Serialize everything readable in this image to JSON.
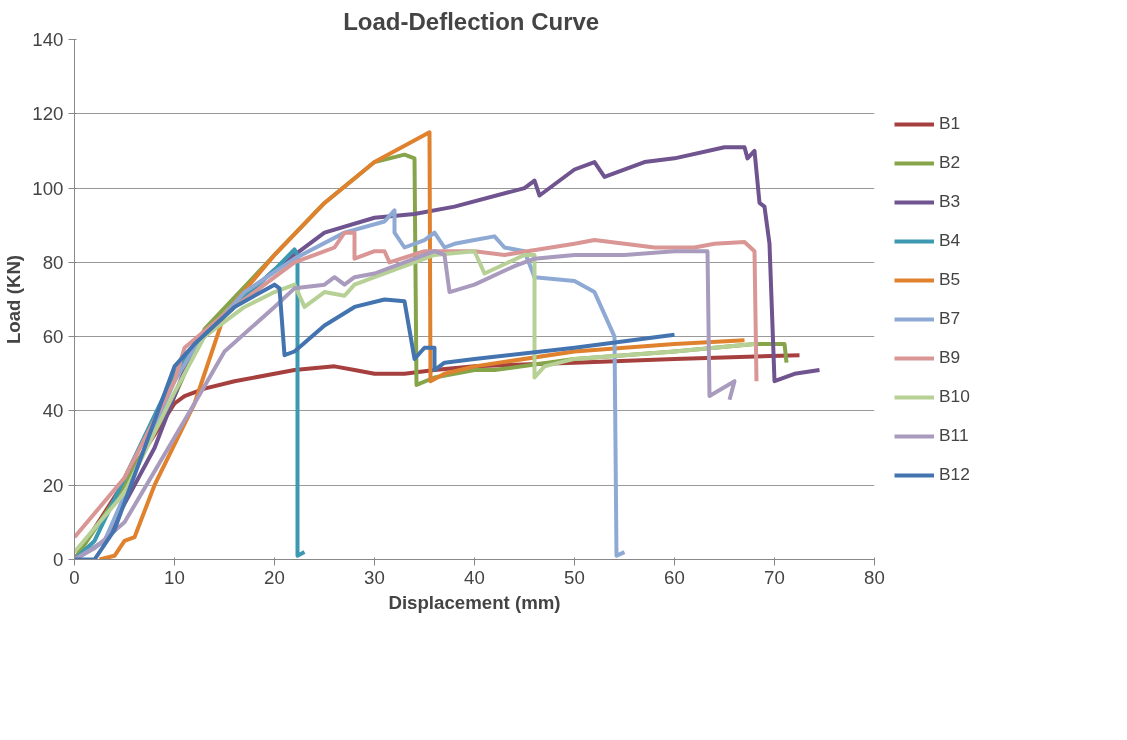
{
  "chart_data": {
    "type": "line",
    "title": "Load-Deflection  Curve",
    "xlabel": "Displacement (mm)",
    "ylabel": "Load (KN)",
    "xlim": [
      0,
      80
    ],
    "ylim": [
      0,
      140
    ],
    "xticks": [
      0,
      10,
      20,
      30,
      40,
      50,
      60,
      70,
      80
    ],
    "yticks": [
      0,
      20,
      40,
      60,
      80,
      100,
      120,
      140
    ],
    "grid": "y",
    "legend": "right",
    "line_style": "solid",
    "marker": "none",
    "series": [
      {
        "name": "B1",
        "color": "#a5403e",
        "x": [
          0,
          10,
          11,
          13,
          16,
          20,
          22,
          26,
          28,
          30,
          33,
          36,
          40,
          50,
          60,
          72.5
        ],
        "values": [
          0,
          42,
          44,
          46,
          48,
          50,
          51,
          52,
          51,
          50,
          50,
          51,
          52,
          53,
          54,
          55
        ]
      },
      {
        "name": "B2",
        "color": "#86a44a",
        "x": [
          0,
          5,
          10,
          13,
          20,
          25,
          30,
          33,
          34,
          34.2,
          36,
          40,
          42,
          50,
          60,
          68,
          71,
          71.2
        ],
        "values": [
          0,
          20,
          44,
          62,
          82,
          96,
          107,
          109,
          108,
          47,
          49,
          51,
          51,
          54,
          56,
          58,
          58,
          53
        ]
      },
      {
        "name": "B3",
        "color": "#6f548f",
        "x": [
          0,
          3,
          8,
          12,
          15,
          20,
          25,
          30,
          34,
          38,
          45,
          46,
          46.5,
          50,
          52,
          53,
          57,
          60,
          65,
          67,
          67.3,
          68,
          68.5,
          69,
          69.5,
          70,
          72,
          74.5
        ],
        "values": [
          0,
          5,
          30,
          58,
          66,
          78,
          88,
          92,
          93,
          95,
          100,
          102,
          98,
          105,
          107,
          103,
          107,
          108,
          111,
          111,
          108,
          110,
          96,
          95,
          85,
          48,
          50,
          51
        ]
      },
      {
        "name": "B4",
        "color": "#3c99b1",
        "x": [
          0,
          2,
          10,
          12,
          16,
          20,
          22,
          22.3,
          22.3,
          23
        ],
        "values": [
          0,
          5,
          50,
          58,
          68,
          78,
          83.5,
          82,
          1,
          2
        ]
      },
      {
        "name": "B5",
        "color": "#e0812e",
        "x": [
          2.5,
          4,
          5,
          6,
          8,
          12,
          15,
          20,
          25,
          30,
          35.5,
          35.6,
          37,
          40,
          50,
          60,
          67
        ],
        "values": [
          0,
          1,
          5,
          6,
          20,
          42,
          66,
          82,
          96,
          107,
          115,
          48,
          50,
          52,
          56,
          58,
          59
        ]
      },
      {
        "name": "B7",
        "color": "#8eaad4",
        "x": [
          0,
          3,
          10,
          12,
          17,
          22,
          27,
          31,
          32,
          32,
          33,
          35,
          36,
          37,
          38,
          40,
          42,
          43,
          45,
          46,
          50,
          52,
          54,
          54.2,
          55
        ],
        "values": [
          0,
          5,
          48,
          57,
          72,
          81,
          88,
          91,
          94,
          88,
          84,
          86,
          88,
          84,
          85,
          86,
          87,
          84,
          83,
          76,
          75,
          72,
          60,
          1,
          2
        ]
      },
      {
        "name": "B9",
        "color": "#d99694",
        "x": [
          0,
          5,
          10,
          11,
          15,
          20,
          22,
          26,
          27,
          28,
          28,
          30,
          31,
          31.5,
          35,
          40,
          43,
          50,
          52,
          55,
          58,
          62,
          64,
          67,
          68,
          68.2
        ],
        "values": [
          6,
          22,
          48,
          57,
          66,
          76,
          80,
          84,
          88,
          88,
          81,
          83,
          83,
          80,
          83,
          83,
          82,
          85,
          86,
          85,
          84,
          84,
          85,
          85.5,
          83,
          48
        ]
      },
      {
        "name": "B10",
        "color": "#b6d095",
        "x": [
          0,
          5,
          10,
          13,
          17,
          20,
          22,
          23,
          25,
          27,
          28,
          30,
          34,
          36,
          40,
          41,
          45,
          46,
          46,
          47,
          50,
          60,
          68
        ],
        "values": [
          2,
          18,
          45,
          60,
          68,
          72,
          74,
          68,
          72,
          71,
          74,
          76,
          80,
          82,
          83,
          77,
          82,
          82,
          49,
          52,
          54,
          56,
          58
        ]
      },
      {
        "name": "B11",
        "color": "#a99bbd",
        "x": [
          0,
          2,
          5,
          12,
          15,
          20,
          22,
          25,
          26,
          27,
          28,
          30,
          33,
          36,
          37,
          37.5,
          40,
          44,
          46,
          50,
          55,
          60,
          63.3,
          63.5,
          66,
          65.5
        ],
        "values": [
          0,
          3,
          10,
          42,
          56,
          68,
          73,
          74,
          76,
          74,
          76,
          77,
          80,
          83,
          82,
          72,
          74,
          79,
          81,
          82,
          82,
          83,
          83,
          44,
          48,
          43
        ]
      },
      {
        "name": "B12",
        "color": "#4374b0",
        "x": [
          0,
          2,
          4,
          10,
          12,
          16,
          20,
          20.5,
          21,
          22,
          25,
          28,
          31,
          33,
          34,
          35,
          36,
          36,
          37,
          40,
          50,
          60
        ],
        "values": [
          0,
          0,
          8,
          52,
          58,
          68,
          74,
          73,
          55,
          56,
          63,
          68,
          70,
          69.5,
          54,
          57,
          57,
          51,
          53,
          54,
          57,
          60.5
        ]
      }
    ]
  }
}
